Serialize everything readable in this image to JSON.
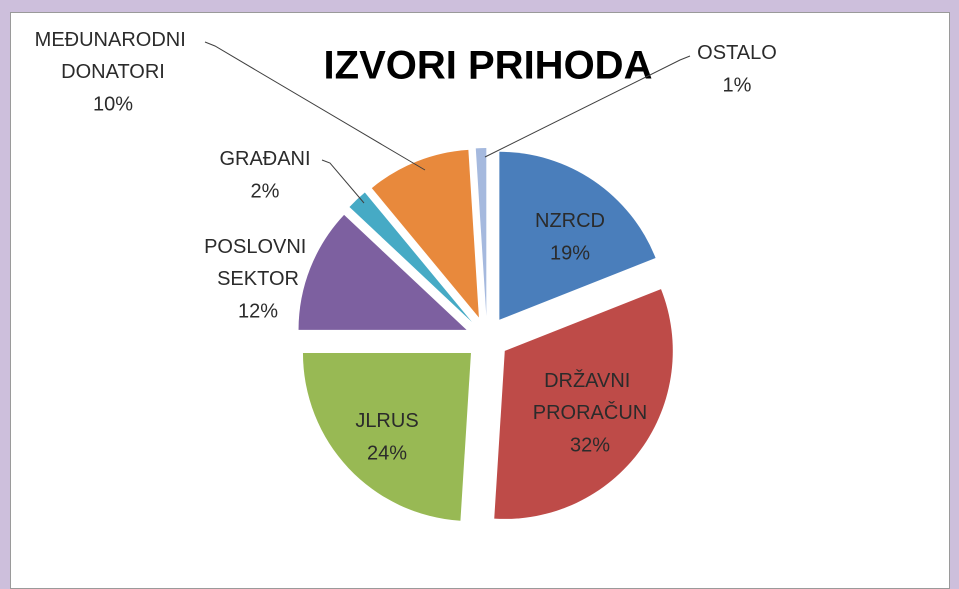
{
  "chart_data": {
    "type": "pie",
    "title": "IZVORI PRIHODA",
    "categories": [
      "NZRCD",
      "DRŽAVNI PRORAČUN",
      "JLRUS",
      "POSLOVNI SEKTOR",
      "GRAĐANI",
      "MEĐUNARODNI DONATORI",
      "OSTALO"
    ],
    "values": [
      19,
      32,
      24,
      12,
      2,
      10,
      1
    ],
    "value_labels": [
      "19%",
      "32%",
      "24%",
      "12%",
      "2%",
      "10%",
      "1%"
    ],
    "colors": [
      "#4a7ebb",
      "#be4b48",
      "#98b954",
      "#7d60a0",
      "#46aac5",
      "#e8893c",
      "#a5b9de"
    ]
  }
}
